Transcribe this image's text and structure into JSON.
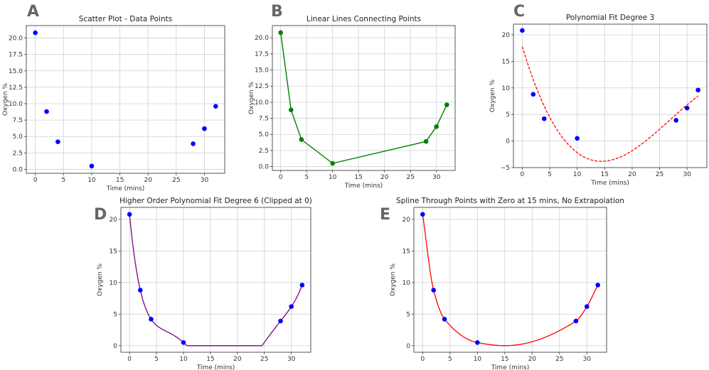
{
  "chart_data": [
    {
      "panel": "A",
      "type": "scatter",
      "title": "Scatter Plot - Data Points",
      "xlabel": "Time (mins)",
      "ylabel": "Oxygen %",
      "x": [
        0,
        2,
        4,
        10,
        28,
        30,
        32
      ],
      "y": [
        20.8,
        8.8,
        4.2,
        0.5,
        3.9,
        6.2,
        9.6
      ],
      "xticks": [
        0,
        5,
        10,
        15,
        20,
        25,
        30
      ],
      "yticks": [
        "0.0",
        "2.5",
        "5.0",
        "7.5",
        "10.0",
        "12.5",
        "15.0",
        "17.5",
        "20.0"
      ],
      "grid": true,
      "marker_color": "#0000ff"
    },
    {
      "panel": "B",
      "type": "line",
      "title": "Linear Lines Connecting Points",
      "xlabel": "Time (mins)",
      "ylabel": "Oxygen %",
      "x": [
        0,
        2,
        4,
        10,
        28,
        30,
        32
      ],
      "y": [
        20.8,
        8.8,
        4.2,
        0.5,
        3.9,
        6.2,
        9.6
      ],
      "xticks": [
        0,
        5,
        10,
        15,
        20,
        25,
        30
      ],
      "yticks": [
        "0.0",
        "2.5",
        "5.0",
        "7.5",
        "10.0",
        "12.5",
        "15.0",
        "17.5",
        "20.0"
      ],
      "grid": true,
      "line_color": "#008000"
    },
    {
      "panel": "C",
      "type": "scatter+line",
      "title": "Polynomial Fit Degree 3",
      "xlabel": "Time (mins)",
      "ylabel": "Oxygen %",
      "x": [
        0,
        2,
        4,
        10,
        28,
        30,
        32
      ],
      "y": [
        20.8,
        8.8,
        4.2,
        0.5,
        3.9,
        6.2,
        9.6
      ],
      "fit_degree": 3,
      "xticks": [
        0,
        5,
        10,
        15,
        20,
        25,
        30
      ],
      "yticks": [
        "−5",
        "0",
        "5",
        "10",
        "15",
        "20"
      ],
      "grid": true,
      "marker_color": "#0000ff",
      "line_color": "#ff0000",
      "line_style": "dashed"
    },
    {
      "panel": "D",
      "type": "scatter+line",
      "title": "Higher Order Polynomial Fit Degree 6 (Clipped at 0)",
      "xlabel": "Time (mins)",
      "ylabel": "Oxygen %",
      "x": [
        0,
        2,
        4,
        10,
        28,
        30,
        32
      ],
      "y": [
        20.8,
        8.8,
        4.2,
        0.5,
        3.9,
        6.2,
        9.6
      ],
      "fit_degree": 6,
      "clip_min": 0,
      "xticks": [
        0,
        5,
        10,
        15,
        20,
        25,
        30
      ],
      "yticks": [
        "0",
        "5",
        "10",
        "15",
        "20"
      ],
      "grid": true,
      "marker_color": "#0000ff",
      "line_color": "#800080"
    },
    {
      "panel": "E",
      "type": "scatter+line",
      "title": "Spline Through Points with Zero at 15 mins, No Extrapolation",
      "xlabel": "Time (mins)",
      "ylabel": "Oxygen %",
      "x": [
        0,
        2,
        4,
        10,
        28,
        30,
        32
      ],
      "y": [
        20.8,
        8.8,
        4.2,
        0.5,
        3.9,
        6.2,
        9.6
      ],
      "spline_extra_point": [
        15,
        0
      ],
      "xticks": [
        0,
        5,
        10,
        15,
        20,
        25,
        30
      ],
      "yticks": [
        "0",
        "5",
        "10",
        "15",
        "20"
      ],
      "grid": true,
      "marker_color": "#0000ff",
      "line_color": "#ff0000"
    }
  ]
}
